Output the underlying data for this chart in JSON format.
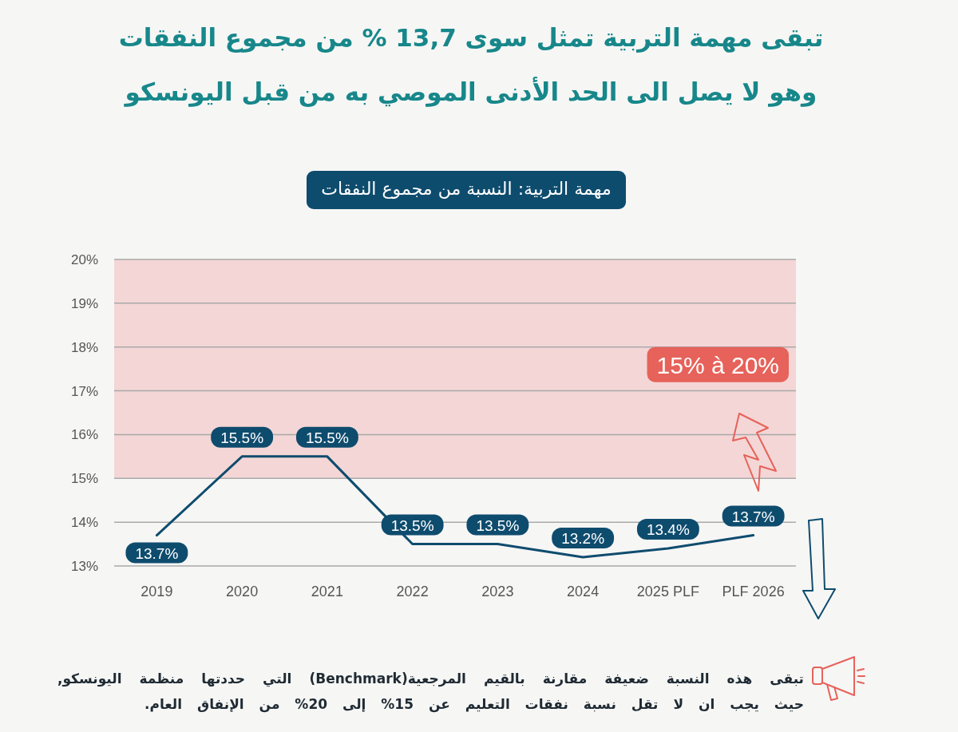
{
  "chart_data": {
    "type": "line",
    "title": "تبقى مهمة التربية تمثل سوى 13,7 % من مجموع النفقات",
    "subtitle": "وهو لا يصل الى الحد الأدنى الموصي به من قبل اليونسكو",
    "categories": [
      "2019",
      "2020",
      "2021",
      "2022",
      "2023",
      "2024",
      "2025 PLF",
      "PLF 2026"
    ],
    "series": [
      {
        "color": "#0e4c6e",
        "values": [
          13.7,
          15.5,
          15.5,
          13.5,
          13.5,
          13.2,
          13.4,
          13.7
        ],
        "value_labels": [
          "13.7%",
          "15.5%",
          "15.5%",
          "13.5%",
          "13.5%",
          "13.2%",
          "13.4%",
          "13.7%"
        ]
      }
    ],
    "ylim": [
      13,
      20
    ],
    "yticks": [
      {
        "value": 13,
        "label": "13%"
      },
      {
        "value": 14,
        "label": "14%"
      },
      {
        "value": 15,
        "label": "15%"
      },
      {
        "value": 16,
        "label": "16%"
      },
      {
        "value": 17,
        "label": "17%"
      },
      {
        "value": 18,
        "label": "18%"
      },
      {
        "value": 19,
        "label": "19%"
      },
      {
        "value": 20,
        "label": "20%"
      }
    ],
    "grid": "y",
    "bands": [
      {
        "axis": "y",
        "from": 15,
        "to": 20,
        "label": "15% à 20%",
        "color": "#f4d6d6"
      }
    ],
    "annotations": [
      "مهمة التربية: النسبة من مجموع النفقات",
      "تبقى هذه النسبة ضعيفة مقارنة بالقيم المرجعية(Benchmark) التي حددتها منظمة اليونسكو, حيث يجب ان لا تقل نسبة نفقات التعليم عن 15% إلى 20%  من الإنفاق العام."
    ]
  }
}
